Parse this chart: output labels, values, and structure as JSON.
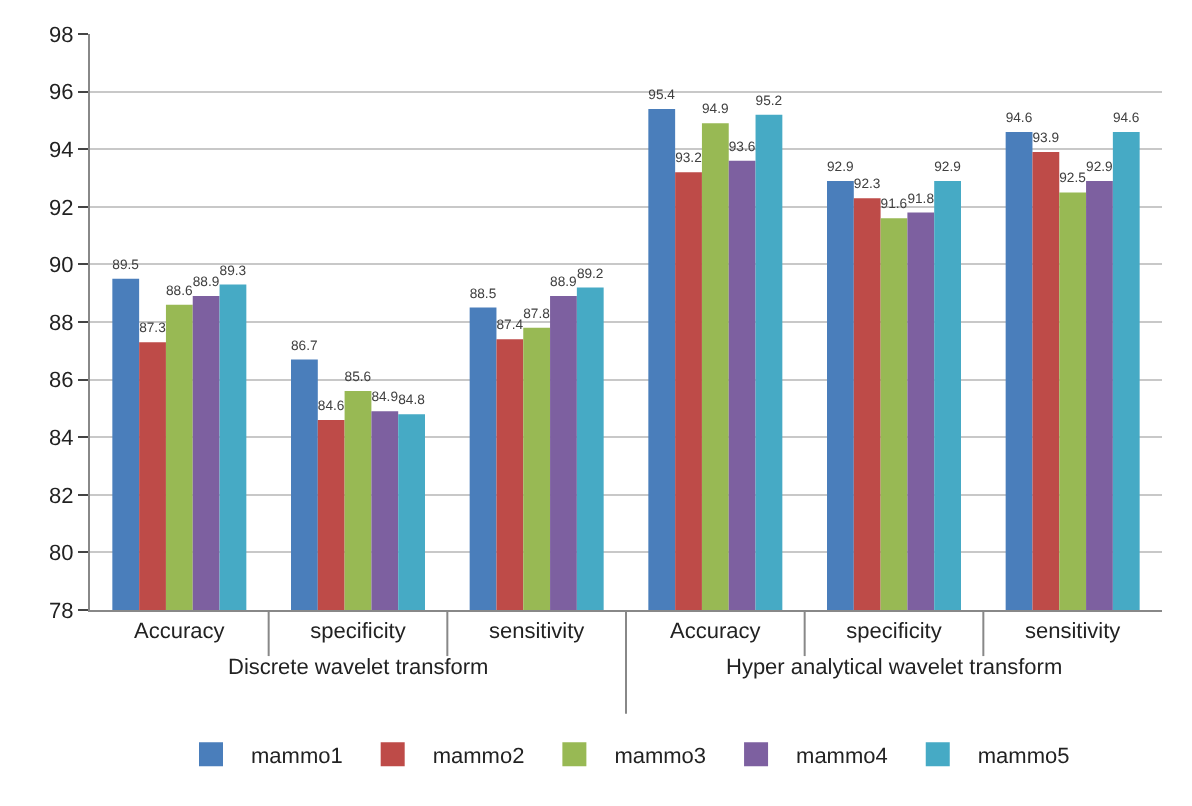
{
  "chart_data": {
    "type": "bar",
    "categories": [
      "Accuracy",
      "specificity",
      "sensitivity",
      "Accuracy",
      "specificity",
      "sensitivity"
    ],
    "annotations": [
      "Discrete wavelet transform",
      "Hyper analytical wavelet transform"
    ],
    "series": [
      {
        "name": "mammo1",
        "color": "#4a7ebb",
        "values": [
          89.5,
          86.7,
          88.5,
          95.4,
          92.9,
          94.6
        ]
      },
      {
        "name": "mammo2",
        "color": "#be4b48",
        "values": [
          87.3,
          84.6,
          87.4,
          93.2,
          92.3,
          93.9
        ]
      },
      {
        "name": "mammo3",
        "color": "#98b954",
        "values": [
          88.6,
          85.6,
          87.8,
          94.9,
          91.6,
          92.5
        ]
      },
      {
        "name": "mammo4",
        "color": "#7d60a0",
        "values": [
          88.9,
          84.9,
          88.9,
          93.6,
          91.8,
          92.9
        ]
      },
      {
        "name": "mammo5",
        "color": "#46aac5",
        "values": [
          89.3,
          84.8,
          89.2,
          95.2,
          92.9,
          94.6
        ]
      }
    ],
    "ylim": [
      78,
      98
    ],
    "yticks": [
      78,
      80,
      82,
      84,
      86,
      88,
      90,
      92,
      94,
      96,
      98
    ],
    "grid": "y",
    "legend": "bottom",
    "data_labels": true
  }
}
